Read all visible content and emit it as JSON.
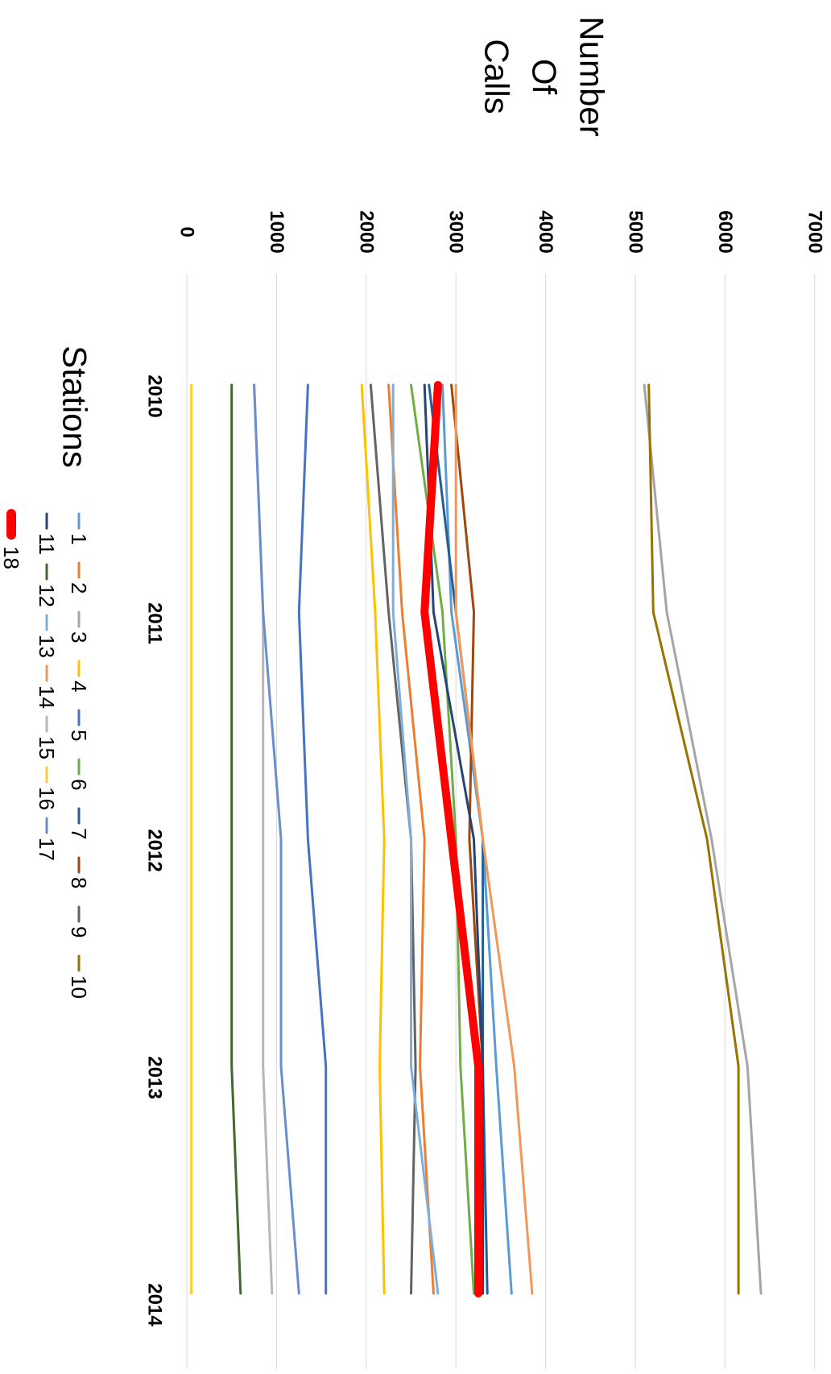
{
  "chart_data": {
    "type": "line",
    "title": "",
    "ylabel": "Number Of Calls",
    "ylabel_lines": [
      "Number",
      "Of",
      "Calls"
    ],
    "xlabel": "",
    "legend_title": "Stations",
    "x": [
      "2010",
      "2011",
      "2012",
      "2013",
      "2014"
    ],
    "ylim": [
      0,
      7000
    ],
    "yticks": [
      0,
      1000,
      2000,
      3000,
      4000,
      5000,
      6000,
      7000
    ],
    "grid": true,
    "orientation": "figure rotated 90 degrees clockwise",
    "legend_position": "bottom",
    "series": [
      {
        "name": "1",
        "color": "#5B9BD5",
        "width": 3,
        "values": [
          2850,
          2950,
          3300,
          3450,
          3620
        ]
      },
      {
        "name": "2",
        "color": "#ED7D31",
        "width": 3,
        "values": [
          2250,
          2400,
          2650,
          2600,
          2750
        ]
      },
      {
        "name": "3",
        "color": "#A5A5A5",
        "width": 3,
        "values": [
          5100,
          5350,
          5850,
          6250,
          6400
        ]
      },
      {
        "name": "4",
        "color": "#FFC000",
        "width": 3,
        "values": [
          1950,
          2100,
          2200,
          2150,
          2200
        ]
      },
      {
        "name": "5",
        "color": "#4472C4",
        "width": 3,
        "values": [
          1350,
          1250,
          1350,
          1550,
          1550
        ]
      },
      {
        "name": "6",
        "color": "#70AD47",
        "width": 3,
        "values": [
          2500,
          2850,
          3000,
          3050,
          3200
        ]
      },
      {
        "name": "7",
        "color": "#255E91",
        "width": 3,
        "values": [
          2700,
          3000,
          3300,
          3300,
          3350
        ]
      },
      {
        "name": "8",
        "color": "#9E480E",
        "width": 3,
        "values": [
          2950,
          3200,
          3150,
          3300,
          3300
        ]
      },
      {
        "name": "9",
        "color": "#636363",
        "width": 3,
        "values": [
          2050,
          2250,
          2500,
          2550,
          2500
        ]
      },
      {
        "name": "10",
        "color": "#997300",
        "width": 3,
        "values": [
          5150,
          5200,
          5800,
          6150,
          6150
        ]
      },
      {
        "name": "11",
        "color": "#264478",
        "width": 3,
        "values": [
          2650,
          2750,
          3200,
          3300,
          3300
        ]
      },
      {
        "name": "12",
        "color": "#43682B",
        "width": 3,
        "values": [
          500,
          500,
          500,
          500,
          600
        ]
      },
      {
        "name": "13",
        "color": "#7CAFDD",
        "width": 3,
        "values": [
          2300,
          2300,
          2500,
          2500,
          2800
        ]
      },
      {
        "name": "14",
        "color": "#F1975A",
        "width": 3,
        "values": [
          3000,
          3000,
          3300,
          3650,
          3850
        ]
      },
      {
        "name": "15",
        "color": "#B7B7B7",
        "width": 3,
        "values": [
          750,
          850,
          850,
          850,
          950
        ]
      },
      {
        "name": "16",
        "color": "#FFCD33",
        "width": 3,
        "values": [
          50,
          50,
          50,
          50,
          50
        ]
      },
      {
        "name": "17",
        "color": "#698ED0",
        "width": 3,
        "values": [
          750,
          850,
          1050,
          1050,
          1250
        ]
      },
      {
        "name": "18",
        "color": "#FF0000",
        "width": 10,
        "values": [
          2800,
          2650,
          2950,
          3250,
          3250
        ]
      }
    ]
  }
}
